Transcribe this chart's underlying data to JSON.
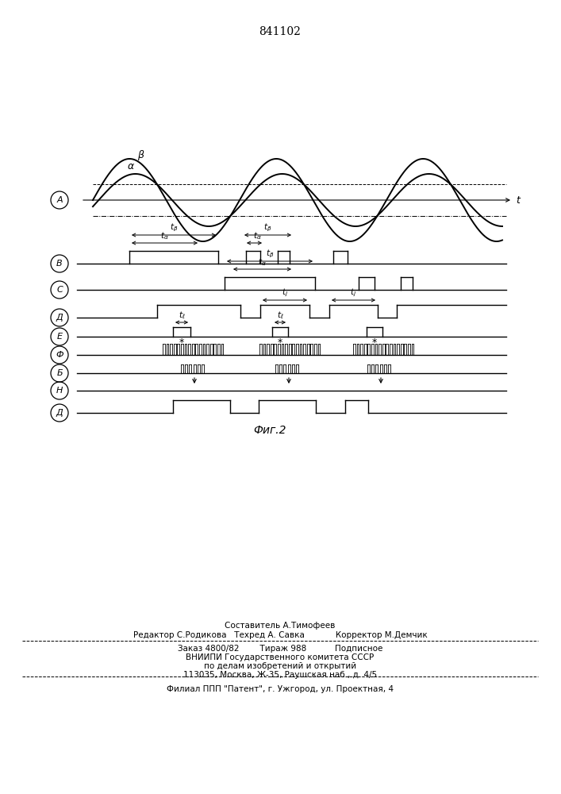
{
  "title": "841102",
  "fig_caption": "Фиг.2",
  "bg_color": "#ffffff",
  "line_color": "#000000",
  "footer_line1": "Составитель А.Тимофеев",
  "footer_line2": "Редактор С.Родикова   Техред А. Савка            Корректор М.Демчик",
  "footer_line3": "Заказ 4800/82        Тираж 988           Подписное",
  "footer_line4": "ВНИИПИ Государственного комитета СССР",
  "footer_line5": "по делам изобретений и открытий",
  "footer_line6": "113035, Москва, Ж-35, Раушская наб., д. 4/5",
  "footer_line7": "Филиал ППП \"Патент\", г. Ужгород, ул. Проектная, 4",
  "row_labels_chars": {
    "A": "А",
    "B": "В",
    "C": "С",
    "D": "Д",
    "E": "Е",
    "F": "Ф",
    "G": "Б",
    "H": "Н",
    "J": "Д"
  }
}
